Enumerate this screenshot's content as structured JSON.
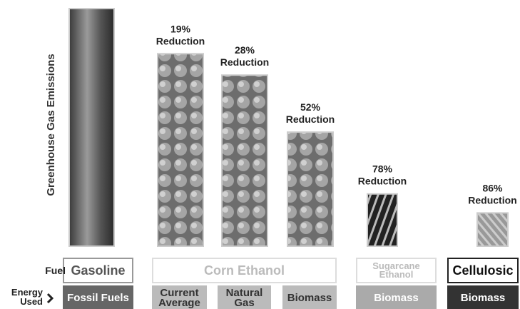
{
  "chart_data": {
    "type": "bar",
    "y_label": "Greenhouse Gas Emissions",
    "categories": [
      "Fossil Fuels",
      "Current Average",
      "Natural Gas",
      "Biomass",
      "Biomass",
      "Biomass"
    ],
    "values": [
      100,
      81,
      72,
      48,
      22,
      14
    ],
    "annotations": [
      null,
      {
        "amount": "19%",
        "word": "Reduction"
      },
      {
        "amount": "28%",
        "word": "Reduction"
      },
      {
        "amount": "52%",
        "word": "Reduction"
      },
      {
        "amount": "78%",
        "word": "Reduction"
      },
      {
        "amount": "86%",
        "word": "Reduction"
      }
    ],
    "fuels": [
      "Gasoline",
      "Corn Ethanol",
      "Sugarcane Ethanol",
      "Cellulosic"
    ],
    "row_labels": [
      "Fuel",
      "Energy Used"
    ],
    "ylim": [
      0,
      100
    ]
  }
}
